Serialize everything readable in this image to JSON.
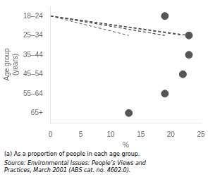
{
  "chart_data": {
    "type": "lollipop",
    "orientation": "horizontal",
    "categories": [
      "18–24",
      "25–34",
      "35–44",
      "45–54",
      "55–64",
      "65+"
    ],
    "values": [
      19,
      23,
      23,
      22,
      19,
      13
    ],
    "color": "#555555",
    "marker": "circle",
    "line_style": "dashed",
    "xlim": [
      0,
      25
    ],
    "xticks": [
      0,
      5,
      10,
      15,
      20,
      25
    ],
    "xlabel": "%",
    "ylabel": [
      "Age group",
      "(years)"
    ],
    "annotations": [
      "(a) As a proportion of people in each age group.",
      "Source: Environmental Issues: People’s Views and\nPractices, March 2001 (ABS cat. no. 4602.0)."
    ],
    "grid": false,
    "legend": "none"
  }
}
